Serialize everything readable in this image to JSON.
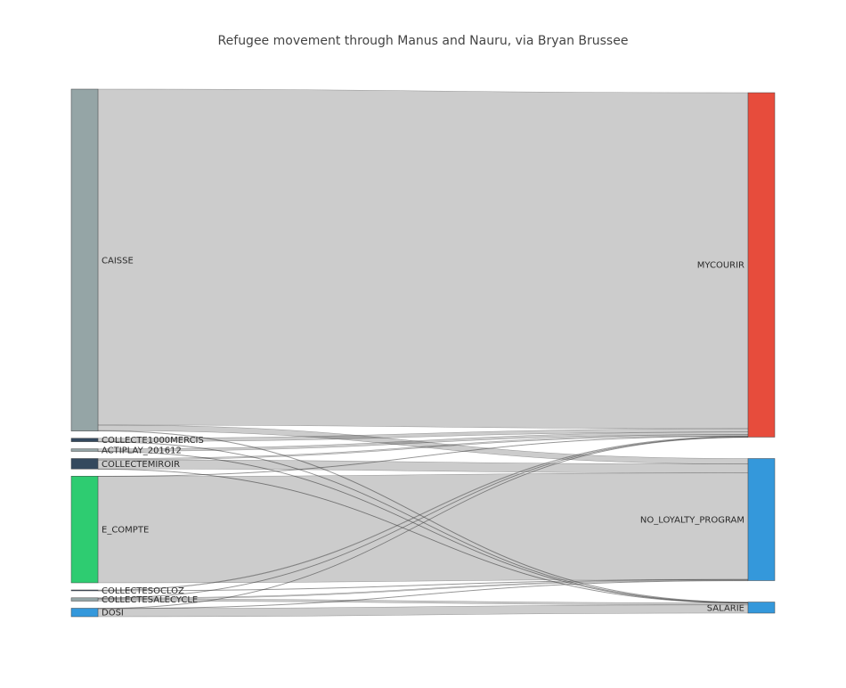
{
  "chart_data": {
    "type": "sankey",
    "title": "Refugee movement through Manus and Nauru, via Bryan Brussee",
    "nodes": [
      {
        "name": "CAISSE",
        "color": "#95a5a6",
        "side": "source"
      },
      {
        "name": "COLLECTE1000MERCIS",
        "color": "#34495e",
        "side": "source"
      },
      {
        "name": "ACTIPLAY_201612",
        "color": "#95a5a6",
        "side": "source"
      },
      {
        "name": "COLLECTEMIROIR",
        "color": "#34495e",
        "side": "source"
      },
      {
        "name": "E_COMPTE",
        "color": "#2ecc71",
        "side": "source"
      },
      {
        "name": "COLLECTESOCLOZ",
        "color": "#34495e",
        "side": "source"
      },
      {
        "name": "COLLECTESALECYCLE",
        "color": "#95a5a6",
        "side": "source"
      },
      {
        "name": "DOSI",
        "color": "#3498db",
        "side": "source"
      },
      {
        "name": "MYCOURIR",
        "color": "#e74c3c",
        "side": "target"
      },
      {
        "name": "NO_LOYALTY_PROGRAM",
        "color": "#3498db",
        "side": "target"
      },
      {
        "name": "SALARIE",
        "color": "#3498db",
        "side": "target"
      }
    ],
    "links": [
      {
        "source": "CAISSE",
        "target": "MYCOURIR",
        "value": 3684
      },
      {
        "source": "CAISSE",
        "target": "NO_LOYALTY_PROGRAM",
        "value": 60
      },
      {
        "source": "CAISSE",
        "target": "SALARIE",
        "value": 6
      },
      {
        "source": "COLLECTE1000MERCIS",
        "target": "MYCOURIR",
        "value": 37
      },
      {
        "source": "COLLECTE1000MERCIS",
        "target": "SALARIE",
        "value": 1
      },
      {
        "source": "ACTIPLAY_201612",
        "target": "MYCOURIR",
        "value": 27
      },
      {
        "source": "ACTIPLAY_201612",
        "target": "SALARIE",
        "value": 1
      },
      {
        "source": "COLLECTEMIROIR",
        "target": "MYCOURIR",
        "value": 15
      },
      {
        "source": "COLLECTEMIROIR",
        "target": "NO_LOYALTY_PROGRAM",
        "value": 99
      },
      {
        "source": "COLLECTEMIROIR",
        "target": "SALARIE",
        "value": 1
      },
      {
        "source": "E_COMPTE",
        "target": "MYCOURIR",
        "value": 4
      },
      {
        "source": "E_COMPTE",
        "target": "NO_LOYALTY_PROGRAM",
        "value": 1166
      },
      {
        "source": "COLLECTESOCLOZ",
        "target": "MYCOURIR",
        "value": 7
      },
      {
        "source": "COLLECTESOCLOZ",
        "target": "NO_LOYALTY_PROGRAM",
        "value": 1
      },
      {
        "source": "COLLECTESALECYCLE",
        "target": "MYCOURIR",
        "value": 2
      },
      {
        "source": "COLLECTESALECYCLE",
        "target": "NO_LOYALTY_PROGRAM",
        "value": 11
      },
      {
        "source": "COLLECTESALECYCLE",
        "target": "SALARIE",
        "value": 23
      },
      {
        "source": "DOSI",
        "target": "MYCOURIR",
        "value": 1
      },
      {
        "source": "DOSI",
        "target": "NO_LOYALTY_PROGRAM",
        "value": 2
      },
      {
        "source": "DOSI",
        "target": "SALARIE",
        "value": 90
      }
    ]
  }
}
